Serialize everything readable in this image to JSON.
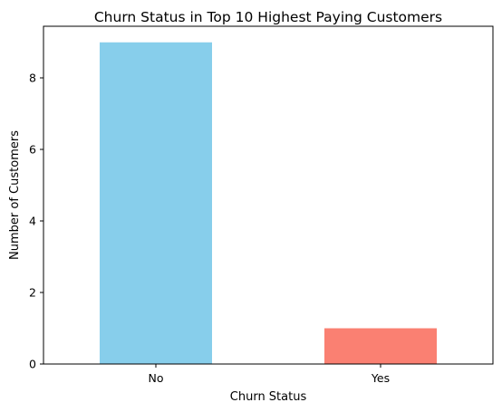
{
  "chart_data": {
    "type": "bar",
    "title": "Churn Status in Top 10 Highest Paying Customers",
    "xlabel": "Churn Status",
    "ylabel": "Number of Customers",
    "categories": [
      "No",
      "Yes"
    ],
    "values": [
      9,
      1
    ],
    "colors": [
      "#87ceeb",
      "#fa8072"
    ],
    "ylim": [
      0,
      9.45
    ],
    "yticks": [
      0,
      2,
      4,
      6,
      8
    ],
    "grid": false,
    "legend": "none"
  }
}
